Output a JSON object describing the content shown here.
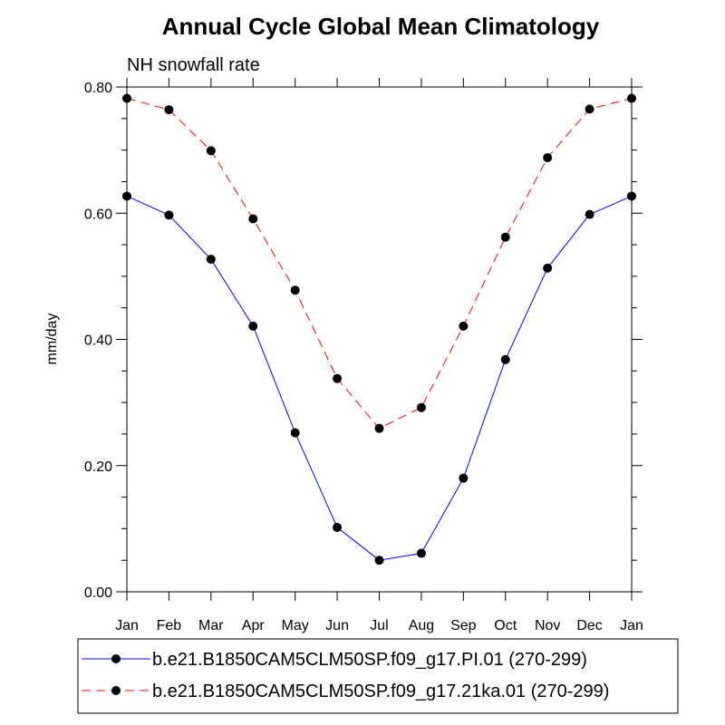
{
  "chart_data": {
    "type": "line",
    "title": "Annual Cycle Global Mean Climatology",
    "subtitle": "NH snowfall rate",
    "xlabel": "",
    "ylabel": "mm/day",
    "categories": [
      "Jan",
      "Feb",
      "Mar",
      "Apr",
      "May",
      "Jun",
      "Jul",
      "Aug",
      "Sep",
      "Oct",
      "Nov",
      "Dec",
      "Jan"
    ],
    "ylim": [
      0.0,
      0.8
    ],
    "yticks": [
      0.0,
      0.2,
      0.4,
      0.6,
      0.8
    ],
    "ytick_labels": [
      "0.00",
      "0.20",
      "0.40",
      "0.60",
      "0.80"
    ],
    "grid": false,
    "legend_position": "bottom",
    "series": [
      {
        "name": "b.e21.B1850CAM5CLM50SP.f09_g17.PI.01 (270-299)",
        "color": "#0000ff",
        "dash": "solid",
        "values": [
          0.627,
          0.597,
          0.527,
          0.421,
          0.252,
          0.102,
          0.05,
          0.061,
          0.18,
          0.368,
          0.513,
          0.598,
          0.627
        ]
      },
      {
        "name": "b.e21.B1850CAM5CLM50SP.f09_g17.21ka.01 (270-299)",
        "color": "#ff0000",
        "dash": "dashed",
        "values": [
          0.782,
          0.764,
          0.699,
          0.591,
          0.478,
          0.338,
          0.259,
          0.292,
          0.421,
          0.562,
          0.688,
          0.765,
          0.782
        ]
      }
    ]
  }
}
